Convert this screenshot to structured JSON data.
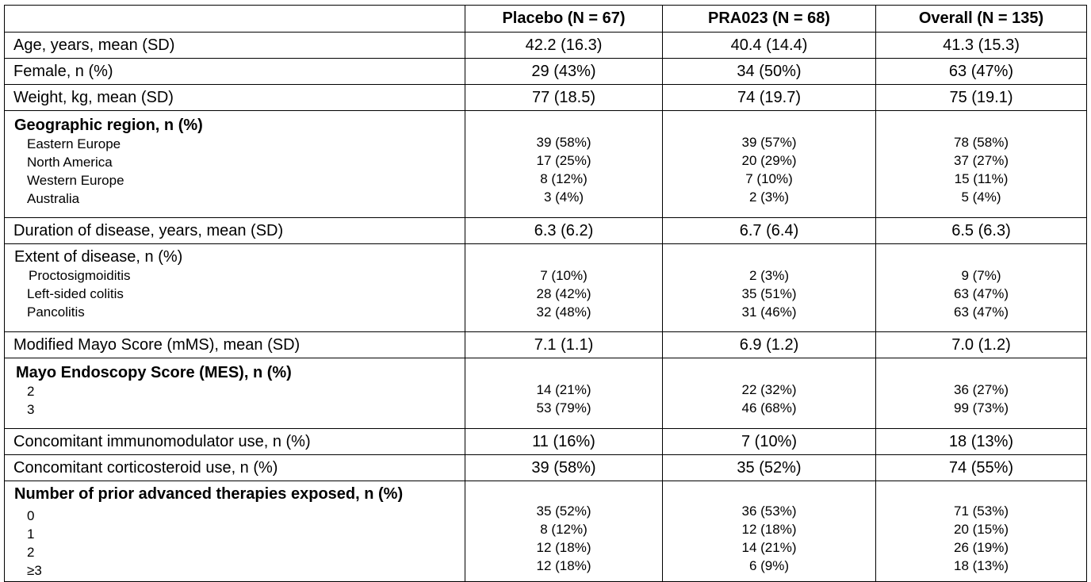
{
  "header": {
    "corner": "",
    "col1": "Placebo (N = 67)",
    "col2": "PRA023 (N = 68)",
    "col3": "Overall (N = 135)"
  },
  "rows": {
    "age": {
      "label": "Age, years, mean (SD)",
      "v1": "42.2 (16.3)",
      "v2": "40.4 (14.4)",
      "v3": "41.3 (15.3)"
    },
    "female": {
      "label": "Female, n (%)",
      "v1": "29 (43%)",
      "v2": "34 (50%)",
      "v3": "63 (47%)"
    },
    "weight": {
      "label": "Weight, kg, mean (SD)",
      "v1": "77 (18.5)",
      "v2": "74 (19.7)",
      "v3": "75 (19.1)"
    },
    "geo": {
      "label": "Geographic region, n (%)",
      "items": [
        {
          "label": "Eastern Europe",
          "v1": "39 (58%)",
          "v2": "39 (57%)",
          "v3": "78 (58%)"
        },
        {
          "label": "North America",
          "v1": "17 (25%)",
          "v2": "20 (29%)",
          "v3": "37 (27%)"
        },
        {
          "label": "Western Europe",
          "v1": "8 (12%)",
          "v2": "7 (10%)",
          "v3": "15 (11%)"
        },
        {
          "label": "Australia",
          "v1": "3 (4%)",
          "v2": "2 (3%)",
          "v3": "5 (4%)"
        }
      ]
    },
    "duration": {
      "label": "Duration of disease, years, mean (SD)",
      "v1": "6.3 (6.2)",
      "v2": "6.7 (6.4)",
      "v3": "6.5 (6.3)"
    },
    "extent": {
      "label": "Extent of disease, n (%)",
      "items": [
        {
          "label": "Proctosigmoiditis",
          "v1": "7 (10%)",
          "v2": "2 (3%)",
          "v3": "9 (7%)"
        },
        {
          "label": "Left-sided colitis",
          "v1": "28 (42%)",
          "v2": "35 (51%)",
          "v3": "63 (47%)"
        },
        {
          "label": "Pancolitis",
          "v1": "32 (48%)",
          "v2": "31 (46%)",
          "v3": "63 (47%)"
        }
      ]
    },
    "mms": {
      "label": "Modified Mayo Score (mMS), mean (SD)",
      "v1": "7.1 (1.1)",
      "v2": "6.9 (1.2)",
      "v3": "7.0 (1.2)"
    },
    "mes": {
      "label": "Mayo Endoscopy Score (MES), n (%)",
      "items": [
        {
          "label": "2",
          "v1": "14 (21%)",
          "v2": "22 (32%)",
          "v3": "36 (27%)"
        },
        {
          "label": "3",
          "v1": "53 (79%)",
          "v2": "46 (68%)",
          "v3": "99 (73%)"
        }
      ]
    },
    "immuno": {
      "label": "Concomitant immunomodulator use, n (%)",
      "v1": "11 (16%)",
      "v2": "7 (10%)",
      "v3": "18 (13%)"
    },
    "cortico": {
      "label": "Concomitant corticosteroid use, n (%)",
      "v1": "39 (58%)",
      "v2": "35 (52%)",
      "v3": "74 (55%)"
    },
    "prior": {
      "label": "Number of prior advanced therapies exposed, n (%)",
      "items": [
        {
          "label": "0",
          "v1": "35 (52%)",
          "v2": "36 (53%)",
          "v3": "71 (53%)"
        },
        {
          "label": "1",
          "v1": "8 (12%)",
          "v2": "12 (18%)",
          "v3": "20 (15%)"
        },
        {
          "label": "2",
          "v1": "12 (18%)",
          "v2": "14 (21%)",
          "v3": "26 (19%)"
        },
        {
          "label": "≥3",
          "v1": "12 (18%)",
          "v2": "6 (9%)",
          "v3": "18 (13%)"
        }
      ]
    }
  }
}
